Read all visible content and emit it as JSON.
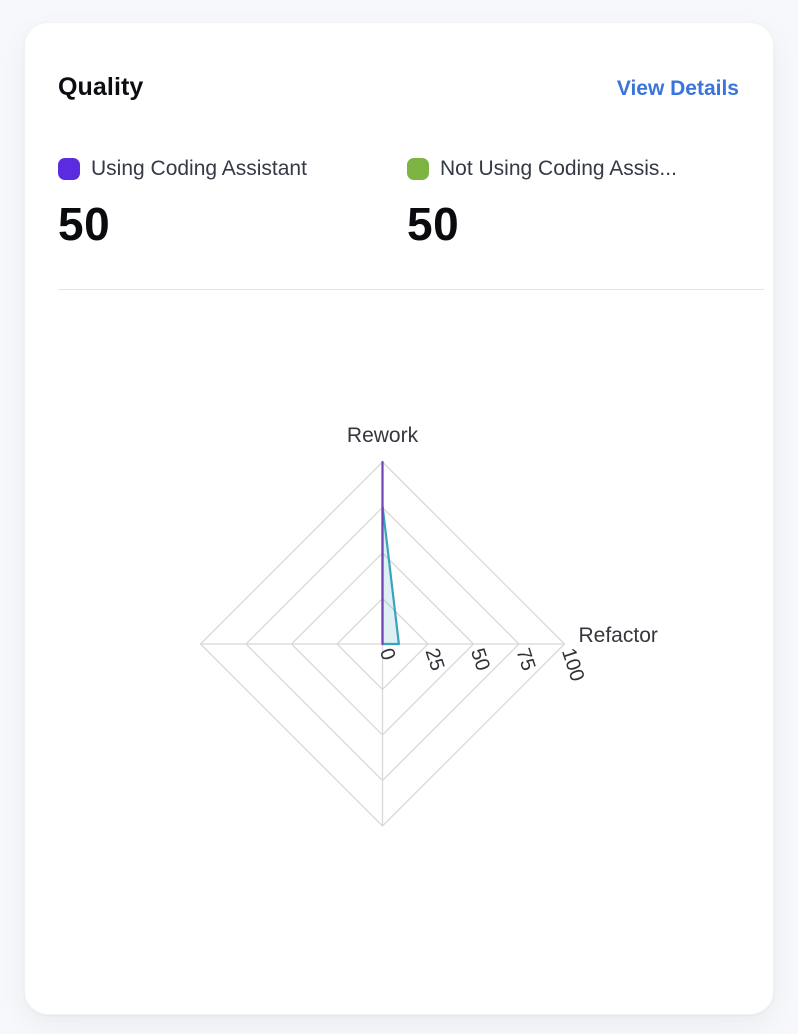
{
  "page": {
    "background": "#F6F8FB"
  },
  "card": {
    "title": "Quality",
    "view_details_label": "View Details",
    "link_color": "#3B74DB",
    "summary": [
      {
        "label": "Using Coding Assistant",
        "value": "50",
        "swatch_color": "#5B2BE0"
      },
      {
        "label": "Not Using Coding Assis...",
        "value": "50",
        "swatch_color": "#7CB342"
      }
    ]
  },
  "chart_data": {
    "type": "radar",
    "title": "Quality",
    "axes": [
      {
        "name": "Rework",
        "position": "top"
      },
      {
        "name": "Refactor",
        "position": "right"
      },
      {
        "name": "",
        "position": "bottom"
      },
      {
        "name": "",
        "position": "left"
      }
    ],
    "scale": {
      "min": 0,
      "max": 100,
      "rings": [
        25,
        50,
        75,
        100
      ],
      "tick_labels": [
        "0",
        "25",
        "50",
        "75",
        "100"
      ],
      "tick_rotation_deg": 72
    },
    "series": [
      {
        "name": "Using Coding Assistant",
        "values": [
          100,
          0,
          0,
          0
        ],
        "stroke": "#7144B4",
        "fill": "none"
      },
      {
        "name": "Not Using Coding Assis...",
        "values": [
          76,
          9,
          0,
          0
        ],
        "stroke": "#38A3BC",
        "fill": "rgba(56,163,188,0.16)"
      }
    ],
    "grid_color": "#D8D8DA",
    "tick_color": "#303036",
    "axis_label_color": "#36363D",
    "legend_position": "top-summary"
  }
}
